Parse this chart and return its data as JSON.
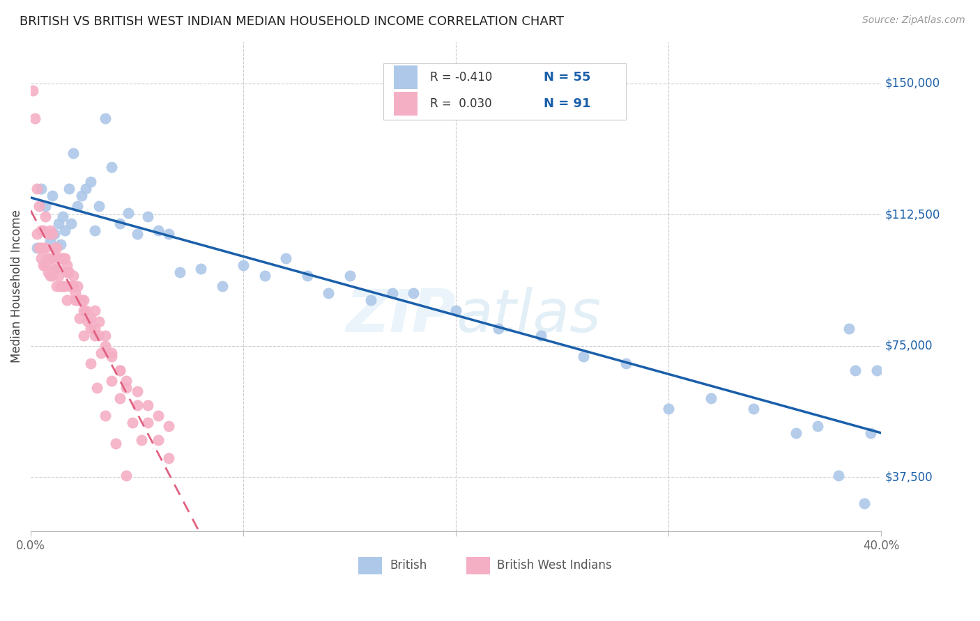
{
  "title": "BRITISH VS BRITISH WEST INDIAN MEDIAN HOUSEHOLD INCOME CORRELATION CHART",
  "source": "Source: ZipAtlas.com",
  "ylabel": "Median Household Income",
  "yticks": [
    37500,
    75000,
    112500,
    150000
  ],
  "ytick_labels": [
    "$37,500",
    "$75,000",
    "$112,500",
    "$150,000"
  ],
  "xlim": [
    0.0,
    0.4
  ],
  "ylim": [
    22000,
    162000
  ],
  "legend_R_british": "R = -0.410",
  "legend_N_british": "N = 55",
  "legend_R_bwi": "R =  0.030",
  "legend_N_bwi": "N = 91",
  "british_color": "#adc8e8",
  "bwi_color": "#f5afc5",
  "british_line_color": "#1a5faa",
  "bwi_line_color": "#e06080",
  "watermark": "ZIPatlas",
  "british_x": [
    0.003,
    0.005,
    0.007,
    0.009,
    0.01,
    0.011,
    0.013,
    0.014,
    0.015,
    0.016,
    0.018,
    0.019,
    0.02,
    0.022,
    0.024,
    0.026,
    0.028,
    0.03,
    0.032,
    0.035,
    0.038,
    0.042,
    0.046,
    0.05,
    0.055,
    0.06,
    0.065,
    0.07,
    0.08,
    0.09,
    0.1,
    0.11,
    0.12,
    0.13,
    0.14,
    0.15,
    0.16,
    0.17,
    0.18,
    0.2,
    0.22,
    0.24,
    0.26,
    0.28,
    0.3,
    0.32,
    0.34,
    0.36,
    0.37,
    0.38,
    0.385,
    0.388,
    0.392,
    0.395,
    0.398
  ],
  "british_y": [
    103000,
    120000,
    115000,
    105000,
    118000,
    107000,
    110000,
    104000,
    112000,
    108000,
    120000,
    110000,
    130000,
    115000,
    118000,
    120000,
    122000,
    108000,
    115000,
    140000,
    126000,
    110000,
    113000,
    107000,
    112000,
    108000,
    107000,
    96000,
    97000,
    92000,
    98000,
    95000,
    100000,
    95000,
    90000,
    95000,
    88000,
    90000,
    90000,
    85000,
    80000,
    78000,
    72000,
    70000,
    57000,
    60000,
    57000,
    50000,
    52000,
    38000,
    80000,
    68000,
    30000,
    50000,
    68000
  ],
  "bwi_x": [
    0.001,
    0.002,
    0.003,
    0.003,
    0.004,
    0.004,
    0.005,
    0.005,
    0.005,
    0.006,
    0.006,
    0.006,
    0.007,
    0.007,
    0.007,
    0.008,
    0.008,
    0.008,
    0.009,
    0.009,
    0.009,
    0.01,
    0.01,
    0.01,
    0.011,
    0.011,
    0.012,
    0.012,
    0.012,
    0.013,
    0.013,
    0.014,
    0.014,
    0.015,
    0.015,
    0.016,
    0.016,
    0.017,
    0.017,
    0.018,
    0.019,
    0.02,
    0.021,
    0.022,
    0.023,
    0.024,
    0.025,
    0.026,
    0.027,
    0.028,
    0.03,
    0.032,
    0.035,
    0.038,
    0.042,
    0.045,
    0.05,
    0.055,
    0.06,
    0.065,
    0.03,
    0.032,
    0.035,
    0.038,
    0.042,
    0.045,
    0.05,
    0.055,
    0.06,
    0.065,
    0.02,
    0.022,
    0.025,
    0.028,
    0.03,
    0.033,
    0.038,
    0.042,
    0.048,
    0.052,
    0.015,
    0.017,
    0.019,
    0.021,
    0.023,
    0.025,
    0.028,
    0.031,
    0.035,
    0.04,
    0.045
  ],
  "bwi_y": [
    148000,
    140000,
    120000,
    107000,
    115000,
    103000,
    108000,
    103000,
    100000,
    108000,
    103000,
    98000,
    112000,
    103000,
    98000,
    107000,
    100000,
    96000,
    108000,
    100000,
    95000,
    107000,
    100000,
    95000,
    103000,
    97000,
    103000,
    97000,
    92000,
    100000,
    95000,
    100000,
    92000,
    100000,
    92000,
    100000,
    92000,
    98000,
    88000,
    96000,
    92000,
    92000,
    90000,
    88000,
    88000,
    88000,
    85000,
    85000,
    82000,
    80000,
    80000,
    78000,
    75000,
    72000,
    68000,
    65000,
    62000,
    58000,
    55000,
    52000,
    85000,
    82000,
    78000,
    73000,
    68000,
    63000,
    58000,
    53000,
    48000,
    43000,
    95000,
    92000,
    88000,
    83000,
    78000,
    73000,
    65000,
    60000,
    53000,
    48000,
    100000,
    96000,
    92000,
    88000,
    83000,
    78000,
    70000,
    63000,
    55000,
    47000,
    38000
  ]
}
